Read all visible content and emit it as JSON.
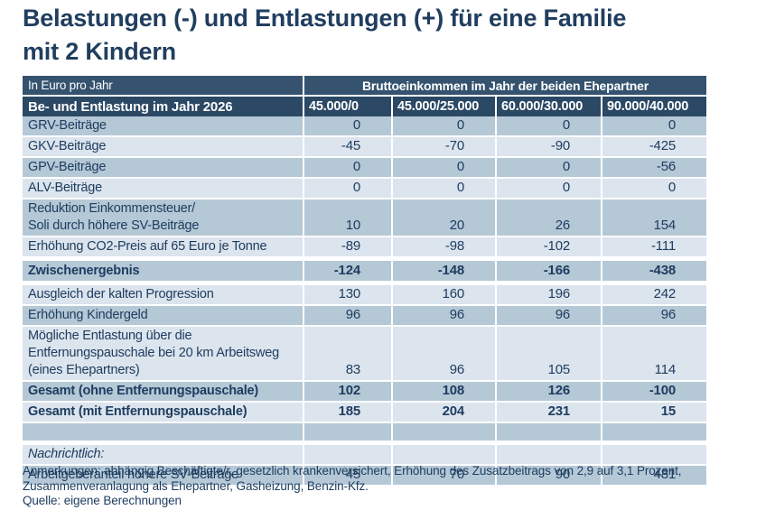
{
  "page": {
    "title": "Belastungen (-) und Entlastungen (+) für eine Familie\nmit 2 Kindern",
    "notes": "Anmerkungen: abhängig Beschäftigte/r, gesetzlich krankenversichert, Erhöhung des Zusatzbeitrags von 2,9 auf 3,1 Prozent,\nZusammenveranlagung als Ehepartner, Gasheizung, Benzin-Kfz.",
    "source": "Quelle: eigene Berechnungen"
  },
  "colors": {
    "header_top_bg": "#35536f",
    "header_bg": "#2b4864",
    "row_dark": "#b5c8d6",
    "row_light": "#dce4ed",
    "text": "#1e3d60",
    "title_text": "#203e5f",
    "header_text": "#ffffff",
    "separator": "#ffffff",
    "page_bg": "#ffffff"
  },
  "chart_data": {
    "type": "table",
    "title": "Belastungen (-) und Entlastungen (+) für eine Familie mit 2 Kindern",
    "unit_label": "In Euro pro Jahr",
    "column_group_header": "Bruttoeinkommen im Jahr der beiden Ehepartner",
    "row_header": "Be- und Entlastung im Jahr 2026",
    "columns": [
      "45.000/0",
      "45.000/25.000",
      "60.000/30.000",
      "90.000/40.000"
    ],
    "rows": [
      {
        "label": "GRV-Beiträge",
        "values": [
          0,
          0,
          0,
          0
        ],
        "shade": "dark"
      },
      {
        "label": "GKV-Beiträge",
        "values": [
          -45,
          -70,
          -90,
          -425
        ],
        "shade": "light"
      },
      {
        "label": "GPV-Beiträge",
        "values": [
          0,
          0,
          0,
          -56
        ],
        "shade": "dark"
      },
      {
        "label": "ALV-Beiträge",
        "values": [
          0,
          0,
          0,
          0
        ],
        "shade": "light"
      },
      {
        "label": "Reduktion Einkommensteuer/\nSoli durch höhere SV-Beiträge",
        "values": [
          10,
          20,
          26,
          154
        ],
        "shade": "dark"
      },
      {
        "label": "Erhöhung CO2-Preis auf 65 Euro je Tonne",
        "values": [
          -89,
          -98,
          -102,
          -111
        ],
        "shade": "light"
      },
      {
        "label": "Zwischenergebnis",
        "values": [
          -124,
          -148,
          -166,
          -438
        ],
        "shade": "dark",
        "bold": true,
        "tall": true,
        "gap_above": true,
        "gap_below": true
      },
      {
        "label": "Ausgleich der kalten Progression",
        "values": [
          130,
          160,
          196,
          242
        ],
        "shade": "light"
      },
      {
        "label": "Erhöhung Kindergeld",
        "values": [
          96,
          96,
          96,
          96
        ],
        "shade": "dark"
      },
      {
        "label": "Mögliche Entlastung über die\nEntfernungspauschale bei 20 km Arbeitsweg\n(eines Ehepartners)",
        "values": [
          83,
          96,
          105,
          114
        ],
        "shade": "light"
      },
      {
        "label": "Gesamt (ohne Entfernungspauschale)",
        "values": [
          102,
          108,
          126,
          -100
        ],
        "shade": "dark",
        "bold": true
      },
      {
        "label": "Gesamt (mit Entfernungspauschale)",
        "values": [
          185,
          204,
          231,
          15
        ],
        "shade": "light",
        "bold": true
      },
      {
        "label": "",
        "values": [
          "",
          "",
          "",
          ""
        ],
        "shade": "dark"
      },
      {
        "label": "Nachrichtlich:",
        "values": [
          "",
          "",
          "",
          ""
        ],
        "shade": "light",
        "italic": true,
        "gap_above": true
      },
      {
        "label": "Arbeitgeberanteil höhere SV-Beiträge",
        "values": [
          45,
          70,
          90,
          481
        ],
        "shade": "dark"
      }
    ]
  }
}
